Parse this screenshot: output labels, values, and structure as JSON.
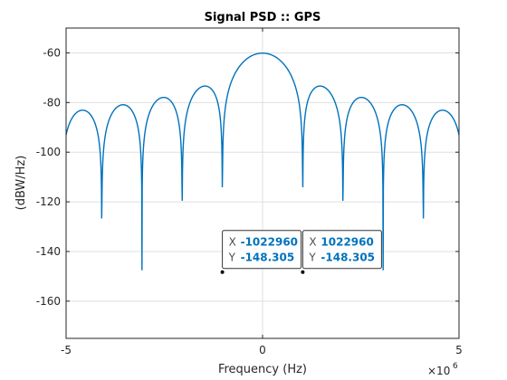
{
  "chart_data": {
    "type": "line",
    "title": "Signal PSD :: GPS",
    "xlabel": "Frequency (Hz)",
    "ylabel": "(dBW/Hz)",
    "x_multiplier_label": "×10",
    "x_multiplier_exp": "6",
    "xlim": [
      -5000000,
      5000000
    ],
    "ylim": [
      -175,
      -50
    ],
    "x_ticks": [
      -5000000,
      0,
      5000000
    ],
    "x_tick_labels": [
      "-5",
      "0",
      "5"
    ],
    "y_ticks": [
      -60,
      -80,
      -100,
      -120,
      -140,
      -160
    ],
    "y_tick_labels": [
      "-60",
      "-80",
      "-100",
      "-120",
      "-140",
      "-160"
    ],
    "grid": true,
    "series": [
      {
        "model": "sinc-squared",
        "chip_rate": 1022960,
        "peak_dbw_hz": -60.1,
        "color": "#0072BD"
      }
    ],
    "datatips": [
      {
        "x_label": "X",
        "x_value": "-1022960",
        "y_label": "Y",
        "y_value": "-148.305",
        "x": -1022960,
        "y": -148.305
      },
      {
        "x_label": "X",
        "x_value": "1022960",
        "y_label": "Y",
        "y_value": "-148.305",
        "x": 1022960,
        "y": -148.305
      }
    ],
    "colors": {
      "line": "#0072BD",
      "grid": "#dfdfdf",
      "axis": "#262626",
      "datatip_value": "#0072BD",
      "datatip_label": "#4d4d4d"
    }
  }
}
